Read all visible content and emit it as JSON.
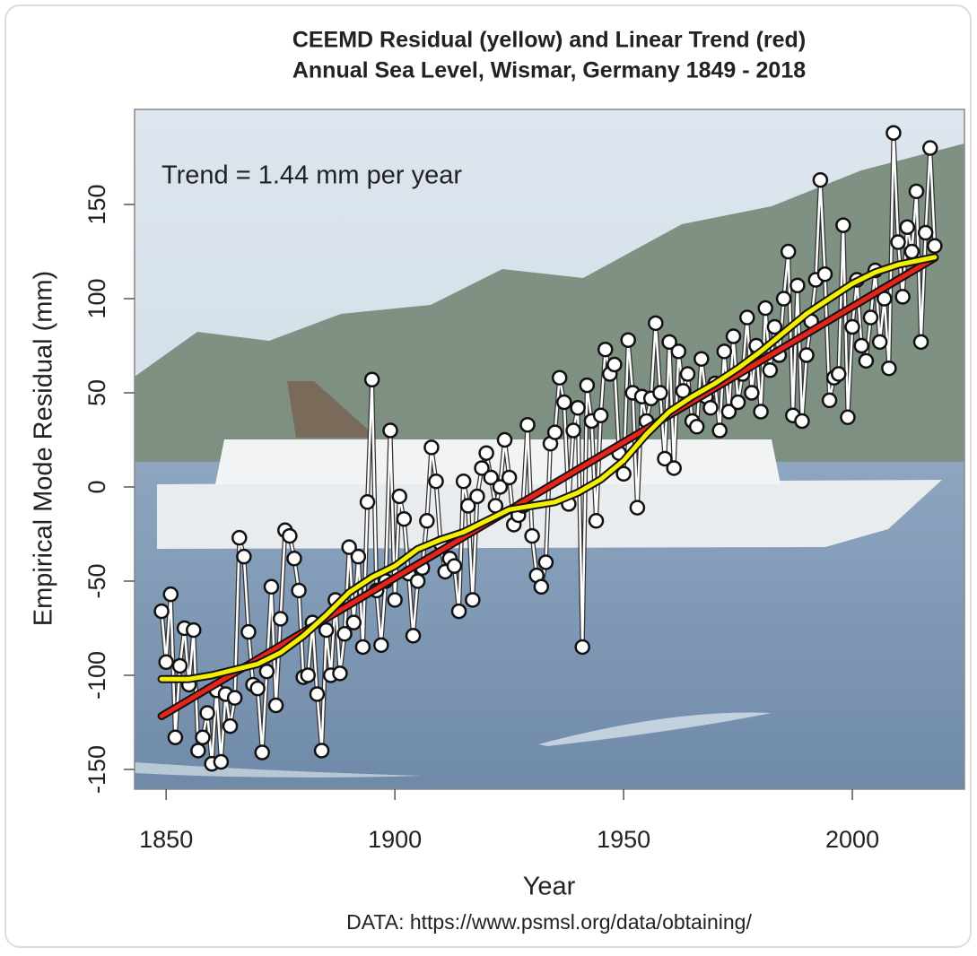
{
  "chart_data": {
    "type": "line",
    "title_lines": [
      "CEEMD Residual (yellow) and Linear Trend (red)",
      "Annual Sea Level, Wismar, Germany 1849 - 2018"
    ],
    "annotation": "Trend = 1.44 mm per year",
    "xlabel": "Year",
    "ylabel": "Empirical Mode Residual (mm)",
    "source": "DATA: https://www.psmsl.org/data/obtaining/",
    "xlim": [
      1843.1,
      2024.5
    ],
    "ylim": [
      -160.5,
      200.5
    ],
    "xticks": [
      1850,
      1900,
      1950,
      2000
    ],
    "yticks": [
      -150,
      -100,
      -50,
      0,
      50,
      100,
      150
    ],
    "point_color": "#ffffff",
    "x": [
      1849,
      1850,
      1851,
      1852,
      1853,
      1854,
      1855,
      1856,
      1857,
      1858,
      1859,
      1860,
      1861,
      1862,
      1863,
      1864,
      1865,
      1866,
      1867,
      1868,
      1869,
      1870,
      1871,
      1872,
      1873,
      1874,
      1875,
      1876,
      1877,
      1878,
      1879,
      1880,
      1881,
      1882,
      1883,
      1884,
      1885,
      1886,
      1887,
      1888,
      1889,
      1890,
      1891,
      1892,
      1893,
      1894,
      1895,
      1896,
      1897,
      1898,
      1899,
      1900,
      1901,
      1902,
      1903,
      1904,
      1905,
      1906,
      1907,
      1908,
      1909,
      1910,
      1911,
      1912,
      1913,
      1914,
      1915,
      1916,
      1917,
      1918,
      1919,
      1920,
      1921,
      1922,
      1923,
      1924,
      1925,
      1926,
      1927,
      1928,
      1929,
      1930,
      1931,
      1932,
      1933,
      1934,
      1935,
      1936,
      1937,
      1938,
      1939,
      1940,
      1941,
      1942,
      1943,
      1944,
      1945,
      1946,
      1947,
      1948,
      1949,
      1950,
      1951,
      1952,
      1953,
      1954,
      1955,
      1956,
      1957,
      1958,
      1959,
      1960,
      1961,
      1962,
      1963,
      1964,
      1965,
      1966,
      1967,
      1968,
      1969,
      1970,
      1971,
      1972,
      1973,
      1974,
      1975,
      1976,
      1977,
      1978,
      1979,
      1980,
      1981,
      1982,
      1983,
      1984,
      1985,
      1986,
      1987,
      1988,
      1989,
      1990,
      1991,
      1992,
      1993,
      1994,
      1995,
      1996,
      1997,
      1998,
      1999,
      2000,
      2001,
      2002,
      2003,
      2004,
      2005,
      2006,
      2007,
      2008,
      2009,
      2010,
      2011,
      2012,
      2013,
      2014,
      2015,
      2016,
      2017,
      2018
    ],
    "values": [
      -66,
      -93,
      -57,
      -133,
      -95,
      -75,
      -105,
      -76,
      -140,
      -133,
      -120,
      -147,
      -108,
      -146,
      -110,
      -127,
      -112,
      -27,
      -37,
      -77,
      -105,
      -107,
      -141,
      -98,
      -53,
      -116,
      -70,
      -23,
      -26,
      -38,
      -55,
      -101,
      -100,
      -72,
      -110,
      -140,
      -76,
      -100,
      -60,
      -99,
      -78,
      -32,
      -72,
      -37,
      -85,
      -8,
      57,
      -55,
      -84,
      -50,
      30,
      -60,
      -5,
      -17,
      -46,
      -79,
      -50,
      -43,
      -18,
      21,
      3,
      -30,
      -45,
      -38,
      -42,
      -66,
      3,
      -10,
      -60,
      -5,
      10,
      18,
      5,
      -10,
      0,
      25,
      5,
      -20,
      -15,
      -10,
      33,
      -26,
      -47,
      -53,
      -40,
      23,
      29,
      58,
      45,
      -9,
      30,
      42,
      -85,
      54,
      35,
      -18,
      38,
      73,
      60,
      65,
      18,
      7,
      78,
      50,
      -11,
      48,
      35,
      47,
      87,
      50,
      15,
      77,
      10,
      72,
      51,
      60,
      35,
      32,
      68,
      48,
      42,
      55,
      30,
      72,
      40,
      80,
      45,
      60,
      90,
      50,
      75,
      40,
      95,
      62,
      85,
      70,
      100,
      125,
      38,
      107,
      35,
      70,
      88,
      110,
      163,
      113,
      46,
      58,
      60,
      139,
      37,
      85,
      110,
      75,
      67,
      90,
      115,
      77,
      100,
      63,
      188,
      130,
      101,
      138,
      125,
      157,
      77,
      135,
      180,
      128
    ],
    "trend": {
      "color": "#e8231a",
      "x": [
        1849,
        2018
      ],
      "values": [
        -121.7,
        121.7
      ]
    },
    "residual": {
      "color": "#f5f000",
      "x": [
        1849,
        1855,
        1860,
        1865,
        1870,
        1875,
        1880,
        1885,
        1890,
        1895,
        1900,
        1905,
        1910,
        1915,
        1920,
        1925,
        1930,
        1935,
        1940,
        1945,
        1950,
        1955,
        1960,
        1965,
        1970,
        1975,
        1980,
        1985,
        1990,
        1995,
        2000,
        2005,
        2010,
        2014,
        2018
      ],
      "values": [
        -102,
        -102,
        -100,
        -97,
        -94,
        -88,
        -79,
        -68,
        -56,
        -48,
        -42,
        -33,
        -28,
        -24,
        -18,
        -12,
        -10,
        -8,
        -3,
        4,
        14,
        28,
        40,
        48,
        55,
        63,
        72,
        82,
        92,
        100,
        108,
        114,
        118,
        120,
        122
      ]
    }
  }
}
